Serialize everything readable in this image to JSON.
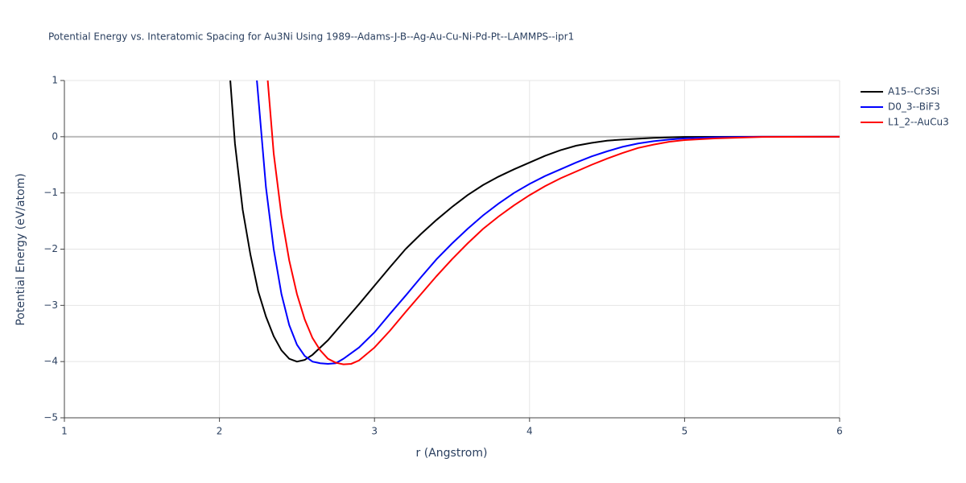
{
  "chart_data": {
    "type": "line",
    "title": "Potential Energy vs. Interatomic Spacing for Au3Ni Using 1989--Adams-J-B--Ag-Au-Cu-Ni-Pd-Pt--LAMMPS--ipr1",
    "x_label": "r (Angstrom)",
    "y_label": "Potential Energy (eV/atom)",
    "xlim": [
      1,
      6
    ],
    "ylim": [
      -5,
      1
    ],
    "xticks": [
      1,
      2,
      3,
      4,
      5,
      6
    ],
    "yticks": [
      {
        "value": -5,
        "label": "−5"
      },
      {
        "value": -4,
        "label": "−4"
      },
      {
        "value": -3,
        "label": "−3"
      },
      {
        "value": -2,
        "label": "−2"
      },
      {
        "value": -1,
        "label": "−1"
      },
      0,
      1
    ],
    "grid": true,
    "legend": "top-right",
    "series": [
      {
        "name": "A15--Cr3Si",
        "color": "#000000",
        "x": [
          2.07,
          2.1,
          2.15,
          2.2,
          2.25,
          2.3,
          2.35,
          2.4,
          2.45,
          2.5,
          2.55,
          2.6,
          2.7,
          2.8,
          2.9,
          3.0,
          3.1,
          3.2,
          3.3,
          3.4,
          3.5,
          3.6,
          3.7,
          3.8,
          3.9,
          4.0,
          4.1,
          4.2,
          4.3,
          4.4,
          4.5,
          4.6,
          4.8,
          5.0,
          5.5,
          6.0
        ],
        "values": [
          1.0,
          -0.12,
          -1.3,
          -2.1,
          -2.75,
          -3.2,
          -3.55,
          -3.8,
          -3.95,
          -4.0,
          -3.97,
          -3.88,
          -3.62,
          -3.3,
          -2.98,
          -2.65,
          -2.32,
          -2.0,
          -1.73,
          -1.48,
          -1.25,
          -1.04,
          -0.86,
          -0.71,
          -0.58,
          -0.46,
          -0.34,
          -0.24,
          -0.16,
          -0.11,
          -0.07,
          -0.05,
          -0.02,
          -0.005,
          0,
          0
        ]
      },
      {
        "name": "D0_3--BiF3",
        "color": "#0000ff",
        "x": [
          2.24,
          2.3,
          2.35,
          2.4,
          2.45,
          2.5,
          2.55,
          2.6,
          2.65,
          2.7,
          2.75,
          2.8,
          2.9,
          3.0,
          3.1,
          3.2,
          3.3,
          3.4,
          3.5,
          3.6,
          3.7,
          3.8,
          3.9,
          4.0,
          4.1,
          4.2,
          4.3,
          4.4,
          4.5,
          4.6,
          4.7,
          4.8,
          4.9,
          5.0,
          5.2,
          5.5,
          6.0
        ],
        "values": [
          1.05,
          -0.9,
          -2.0,
          -2.8,
          -3.35,
          -3.7,
          -3.9,
          -4.0,
          -4.03,
          -4.04,
          -4.03,
          -3.95,
          -3.75,
          -3.48,
          -3.15,
          -2.83,
          -2.5,
          -2.18,
          -1.9,
          -1.64,
          -1.4,
          -1.19,
          -1.0,
          -0.84,
          -0.7,
          -0.58,
          -0.46,
          -0.35,
          -0.26,
          -0.18,
          -0.12,
          -0.08,
          -0.05,
          -0.03,
          -0.01,
          0,
          0
        ]
      },
      {
        "name": "L1_2--AuCu3",
        "color": "#ff0000",
        "x": [
          2.31,
          2.35,
          2.4,
          2.45,
          2.5,
          2.55,
          2.6,
          2.65,
          2.7,
          2.75,
          2.8,
          2.85,
          2.9,
          3.0,
          3.1,
          3.2,
          3.3,
          3.4,
          3.5,
          3.6,
          3.7,
          3.8,
          3.9,
          4.0,
          4.1,
          4.2,
          4.3,
          4.4,
          4.5,
          4.6,
          4.7,
          4.8,
          4.9,
          5.0,
          5.2,
          5.5,
          6.0
        ],
        "values": [
          1.05,
          -0.3,
          -1.4,
          -2.2,
          -2.8,
          -3.25,
          -3.58,
          -3.8,
          -3.95,
          -4.02,
          -4.05,
          -4.04,
          -3.98,
          -3.75,
          -3.45,
          -3.12,
          -2.8,
          -2.48,
          -2.18,
          -1.9,
          -1.64,
          -1.42,
          -1.22,
          -1.04,
          -0.88,
          -0.74,
          -0.62,
          -0.5,
          -0.39,
          -0.29,
          -0.2,
          -0.14,
          -0.09,
          -0.06,
          -0.03,
          -0.005,
          0
        ]
      }
    ]
  }
}
